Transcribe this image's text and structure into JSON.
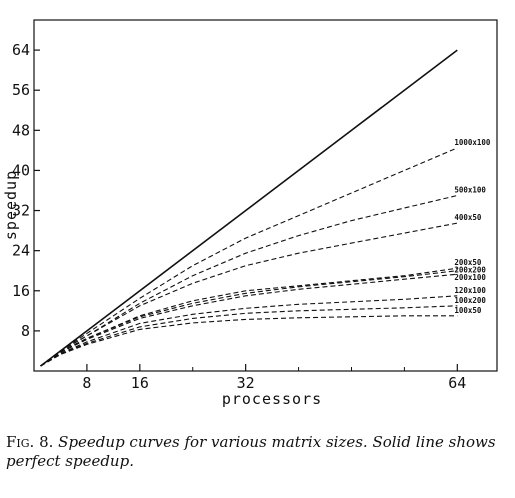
{
  "chart_data": {
    "type": "line",
    "title": "",
    "xlabel": "processors",
    "ylabel": "speedup",
    "xlim": [
      0,
      70
    ],
    "ylim": [
      0,
      70
    ],
    "x_ticks": [
      8,
      16,
      32,
      64
    ],
    "x_minor_ticks": [
      24,
      40,
      48,
      56
    ],
    "y_ticks": [
      8,
      16,
      24,
      32,
      40,
      48,
      56,
      64
    ],
    "grid": false,
    "series": [
      {
        "name": "perfect",
        "style": "solid",
        "x": [
          1,
          64
        ],
        "y": [
          1,
          64
        ]
      },
      {
        "name": "1000x100",
        "style": "dashed",
        "x": [
          1,
          4,
          8,
          16,
          24,
          32,
          40,
          48,
          56,
          64
        ],
        "y": [
          1,
          4,
          7.5,
          14.5,
          21,
          26.5,
          31,
          35.5,
          40,
          44.5
        ]
      },
      {
        "name": "500x100",
        "style": "dashed",
        "x": [
          1,
          4,
          8,
          16,
          24,
          32,
          40,
          48,
          56,
          64
        ],
        "y": [
          1,
          4,
          7,
          13.5,
          19,
          23.5,
          27,
          30,
          32.5,
          35
        ]
      },
      {
        "name": "400x50",
        "style": "dashed",
        "x": [
          1,
          4,
          8,
          16,
          24,
          32,
          40,
          48,
          56,
          64
        ],
        "y": [
          1,
          4,
          7,
          13,
          17.5,
          21,
          23.5,
          25.5,
          27.5,
          29.5
        ]
      },
      {
        "name": "200x50",
        "style": "dashed",
        "x": [
          1,
          4,
          8,
          16,
          24,
          32,
          40,
          48,
          56,
          64
        ],
        "y": [
          1,
          3.8,
          6.5,
          11,
          14,
          16,
          17,
          18,
          19,
          20.5
        ]
      },
      {
        "name": "200x200",
        "style": "dashed",
        "x": [
          1,
          4,
          8,
          16,
          24,
          32,
          40,
          48,
          56,
          64
        ],
        "y": [
          1,
          3.8,
          6.5,
          10.8,
          13.5,
          15.5,
          16.8,
          17.8,
          18.8,
          20
        ]
      },
      {
        "name": "200x100",
        "style": "dashed",
        "x": [
          1,
          4,
          8,
          16,
          24,
          32,
          40,
          48,
          56,
          64
        ],
        "y": [
          1,
          3.7,
          6.3,
          10.5,
          13,
          15,
          16.3,
          17.3,
          18.3,
          19.3
        ]
      },
      {
        "name": "120x100",
        "style": "dashed",
        "x": [
          1,
          4,
          8,
          16,
          24,
          32,
          40,
          48,
          56,
          64
        ],
        "y": [
          1,
          3.5,
          5.8,
          9.5,
          11.3,
          12.5,
          13.3,
          13.8,
          14.3,
          15
        ]
      },
      {
        "name": "100x200",
        "style": "dashed",
        "x": [
          1,
          4,
          8,
          16,
          24,
          32,
          40,
          48,
          56,
          64
        ],
        "y": [
          1,
          3.4,
          5.5,
          8.8,
          10.5,
          11.5,
          12,
          12.3,
          12.6,
          13
        ]
      },
      {
        "name": "100x50",
        "style": "dashed",
        "x": [
          1,
          4,
          8,
          16,
          24,
          32,
          40,
          48,
          56,
          64
        ],
        "y": [
          1,
          3.3,
          5.3,
          8.3,
          9.6,
          10.3,
          10.6,
          10.8,
          11,
          11
        ]
      }
    ]
  },
  "caption": {
    "fig_label": "Fig. 8.",
    "text": "Speedup curves for various matrix sizes. Solid line shows perfect speedup."
  }
}
